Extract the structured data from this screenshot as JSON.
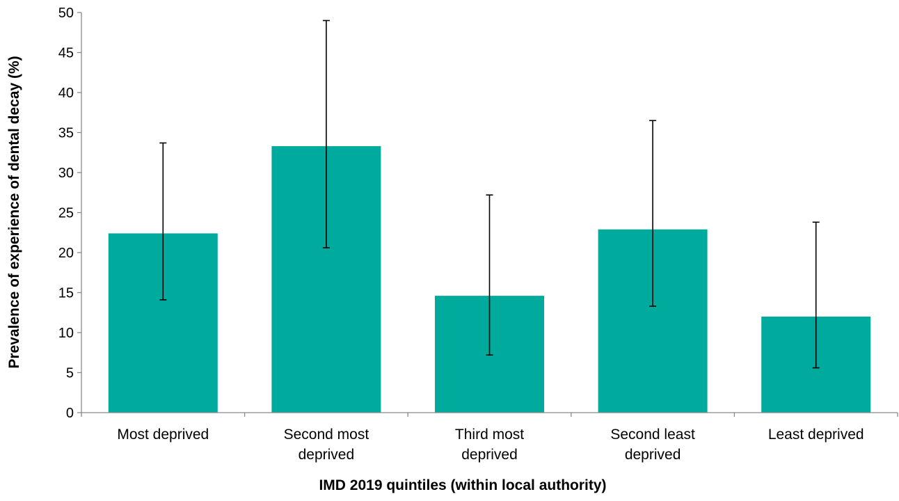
{
  "chart_data": {
    "type": "bar",
    "title": "",
    "xlabel": "IMD 2019 quintiles (within local authority)",
    "ylabel": "Prevalence of experience of dental decay (%)",
    "ylim": [
      0,
      50
    ],
    "yticks": [
      0,
      5,
      10,
      15,
      20,
      25,
      30,
      35,
      40,
      45,
      50
    ],
    "categories": [
      [
        "Most deprived"
      ],
      [
        "Second most",
        "deprived"
      ],
      [
        "Third most",
        "deprived"
      ],
      [
        "Second least",
        "deprived"
      ],
      [
        "Least deprived"
      ]
    ],
    "values": [
      22.4,
      33.3,
      14.6,
      22.9,
      12.0
    ],
    "error_low": [
      14.1,
      20.6,
      7.2,
      13.3,
      5.6
    ],
    "error_high": [
      33.7,
      49.0,
      27.2,
      36.5,
      23.8
    ],
    "bar_color": "#00ab9d",
    "grid": false,
    "legend": "none"
  }
}
